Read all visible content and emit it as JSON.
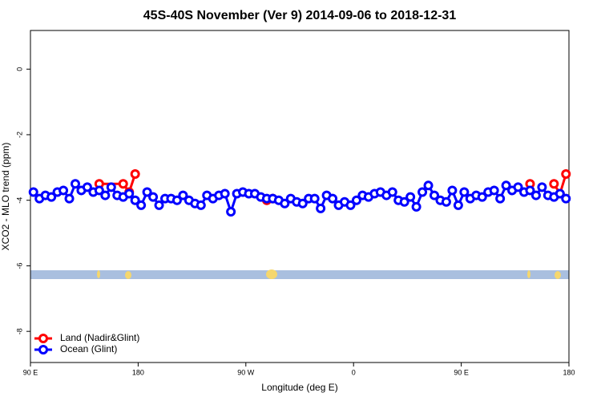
{
  "chart_data": {
    "type": "line",
    "title": "45S-40S November (Ver 9)   2014-09-06 to 2018-12-31",
    "x_label": "Longitude (deg E)",
    "y_label": "XCO2 - MLO trend (ppm)",
    "xlim": [
      90,
      540
    ],
    "ylim": [
      -8.95,
      1.18
    ],
    "xticks": [
      {
        "value": 90,
        "label": "90 E"
      },
      180,
      {
        "value": 270,
        "label": "90 W"
      },
      {
        "value": 360,
        "label": "0"
      },
      {
        "value": 450,
        "label": "90 E"
      },
      {
        "value": 540,
        "label": "180"
      }
    ],
    "yticks": [
      0,
      -2,
      -4,
      -6,
      -8
    ],
    "legend": "bottomleft",
    "series": [
      {
        "name": "Land (Nadir&Glint)",
        "color": "#ff0000",
        "x": [
          147.5,
          167.5,
          172.5,
          177.5,
          null,
          287.5,
          292.5,
          null,
          507.5,
          null,
          527.5,
          532.5,
          537.5
        ],
        "values": [
          -3.5,
          -3.5,
          -3.75,
          -3.2,
          null,
          -4.0,
          -3.95,
          null,
          -3.5,
          null,
          -3.5,
          -3.8,
          -3.2
        ]
      },
      {
        "name": "Ocean (Glint)",
        "color": "#0000ff",
        "x": [
          92.5,
          97.5,
          102.5,
          107.5,
          112.5,
          117.5,
          122.5,
          127.5,
          132.5,
          137.5,
          142.5,
          147.5,
          152.5,
          157.5,
          162.5,
          167.5,
          172.5,
          177.5,
          182.5,
          187.5,
          192.5,
          197.5,
          202.5,
          207.5,
          212.5,
          217.5,
          222.5,
          227.5,
          232.5,
          237.5,
          242.5,
          247.5,
          252.5,
          257.5,
          262.5,
          267.5,
          272.5,
          277.5,
          282.5,
          287.5,
          292.5,
          297.5,
          302.5,
          307.5,
          312.5,
          317.5,
          322.5,
          327.5,
          332.5,
          337.5,
          342.5,
          347.5,
          352.5,
          357.5,
          362.5,
          367.5,
          372.5,
          377.5,
          382.5,
          387.5,
          392.5,
          397.5,
          402.5,
          407.5,
          412.5,
          417.5,
          422.5,
          427.5,
          432.5,
          437.5,
          442.5,
          447.5,
          452.5,
          457.5,
          462.5,
          467.5,
          472.5,
          477.5,
          482.5,
          487.5,
          492.5,
          497.5,
          502.5,
          507.5,
          512.5,
          517.5,
          522.5,
          527.5,
          532.5,
          537.5
        ],
        "values": [
          -3.75,
          -3.95,
          -3.85,
          -3.9,
          -3.75,
          -3.7,
          -3.95,
          -3.5,
          -3.7,
          -3.6,
          -3.75,
          -3.7,
          -3.85,
          -3.6,
          -3.85,
          -3.9,
          -3.8,
          -4.0,
          -4.15,
          -3.75,
          -3.9,
          -4.15,
          -3.95,
          -3.95,
          -4.0,
          -3.85,
          -4.0,
          -4.1,
          -4.15,
          -3.85,
          -3.95,
          -3.85,
          -3.8,
          -4.35,
          -3.8,
          -3.75,
          -3.8,
          -3.8,
          -3.9,
          -3.95,
          -3.95,
          -4.0,
          -4.1,
          -3.95,
          -4.05,
          -4.1,
          -3.95,
          -3.95,
          -4.25,
          -3.85,
          -3.95,
          -4.15,
          -4.05,
          -4.15,
          -4.0,
          -3.85,
          -3.9,
          -3.8,
          -3.75,
          -3.85,
          -3.75,
          -4.0,
          -4.05,
          -3.9,
          -4.2,
          -3.75,
          -3.55,
          -3.85,
          -4.0,
          -4.05,
          -3.7,
          -4.15,
          -3.75,
          -3.95,
          -3.85,
          -3.9,
          -3.75,
          -3.7,
          -3.95,
          -3.55,
          -3.7,
          -3.6,
          -3.75,
          -3.7,
          -3.85,
          -3.6,
          -3.85,
          -3.9,
          -3.8,
          -3.95
        ]
      }
    ]
  }
}
